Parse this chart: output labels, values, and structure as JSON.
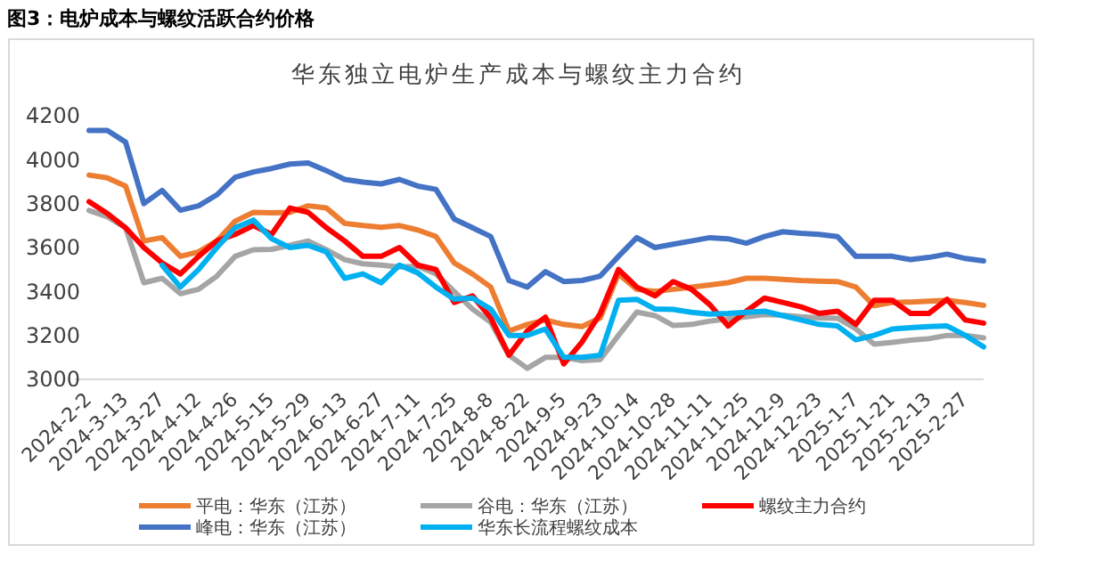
{
  "chart_data": {
    "type": "line",
    "title": "图3：电炉成本与螺纹活跃合约价格",
    "subtitle": "华东独立电炉生产成本与螺纹主力合约",
    "categories": [
      "2024-2-2",
      null,
      "2024-3-13",
      null,
      "2024-3-27",
      null,
      "2024-4-12",
      null,
      "2024-4-26",
      null,
      "2024-5-15",
      null,
      "2024-5-29",
      null,
      "2024-6-13",
      null,
      "2024-6-27",
      null,
      "2024-7-11",
      null,
      "2024-7-25",
      null,
      "2024-8-8",
      null,
      "2024-8-22",
      null,
      "2024-9-5",
      null,
      "2024-9-23",
      null,
      "2024-10-14",
      null,
      "2024-10-28",
      null,
      "2024-11-11",
      null,
      "2024-11-25",
      null,
      "2024-12-9",
      null,
      "2024-12-23",
      null,
      "2025-1-7",
      null,
      "2025-1-21",
      null,
      "2025-2-13",
      null,
      "2025-2-27",
      null
    ],
    "ylim": [
      3000,
      4200
    ],
    "yticks": [
      3000,
      3200,
      3400,
      3600,
      3800,
      4000,
      4200
    ],
    "legend": "bottom",
    "series": [
      {
        "name": "平电：华东（江苏）",
        "color": "#ed7d31",
        "values": [
          3930,
          3917,
          3880,
          3630,
          3645,
          3560,
          3580,
          3630,
          3720,
          3760,
          3758,
          3760,
          3790,
          3780,
          3710,
          3700,
          3692,
          3700,
          3680,
          3650,
          3530,
          3480,
          3420,
          3220,
          3250,
          3270,
          3250,
          3240,
          3280,
          3480,
          3410,
          3400,
          3410,
          3420,
          3430,
          3440,
          3460,
          3460,
          3455,
          3450,
          3447,
          3445,
          3420,
          3335,
          3350,
          3352,
          3356,
          3360,
          3350,
          3337
        ]
      },
      {
        "name": "谷电：华东（江苏）",
        "color": "#a5a5a5",
        "values": [
          3769,
          3740,
          3690,
          3440,
          3460,
          3390,
          3410,
          3470,
          3560,
          3590,
          3592,
          3610,
          3630,
          3590,
          3545,
          3526,
          3520,
          3512,
          3515,
          3480,
          3400,
          3320,
          3260,
          3110,
          3050,
          3100,
          3100,
          3085,
          3090,
          3200,
          3306,
          3290,
          3245,
          3250,
          3265,
          3275,
          3285,
          3295,
          3292,
          3285,
          3280,
          3278,
          3230,
          3160,
          3168,
          3178,
          3185,
          3200,
          3200,
          3189
        ]
      },
      {
        "name": "螺纹主力合约",
        "color": "#ff0000",
        "values": [
          3809,
          3755,
          3690,
          3600,
          3530,
          3480,
          3560,
          3630,
          3660,
          3700,
          3660,
          3780,
          3760,
          3690,
          3630,
          3560,
          3560,
          3600,
          3520,
          3500,
          3350,
          3380,
          3280,
          3110,
          3220,
          3283,
          3070,
          3170,
          3300,
          3500,
          3420,
          3380,
          3445,
          3410,
          3340,
          3243,
          3310,
          3370,
          3350,
          3330,
          3300,
          3310,
          3250,
          3360,
          3360,
          3300,
          3300,
          3364,
          3270,
          3256
        ]
      },
      {
        "name": "峰电：华东（江苏）",
        "color": "#4472c4",
        "values": [
          4133,
          4133,
          4080,
          3800,
          3860,
          3770,
          3790,
          3840,
          3920,
          3944,
          3960,
          3980,
          3985,
          3950,
          3910,
          3898,
          3890,
          3910,
          3880,
          3865,
          3730,
          3690,
          3650,
          3450,
          3420,
          3490,
          3445,
          3450,
          3470,
          3560,
          3645,
          3600,
          3615,
          3630,
          3645,
          3640,
          3620,
          3650,
          3672,
          3665,
          3660,
          3650,
          3560,
          3560,
          3560,
          3545,
          3555,
          3570,
          3550,
          3539
        ]
      },
      {
        "name": "华东长流程螺纹成本",
        "color": "#00b0f0",
        "values": [
          null,
          null,
          null,
          null,
          3520,
          3420,
          3500,
          3600,
          3690,
          3725,
          3640,
          3600,
          3610,
          3580,
          3460,
          3480,
          3440,
          3520,
          3485,
          3420,
          3365,
          3370,
          3320,
          3200,
          3200,
          3229,
          3100,
          3100,
          3110,
          3360,
          3364,
          3320,
          3318,
          3305,
          3297,
          3300,
          3305,
          3310,
          3290,
          3270,
          3250,
          3243,
          3180,
          3200,
          3229,
          3235,
          3240,
          3243,
          3200,
          3148
        ]
      }
    ]
  }
}
